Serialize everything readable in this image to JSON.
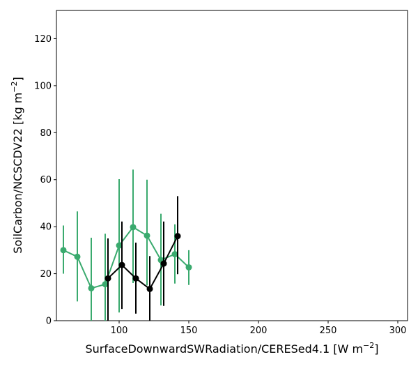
{
  "chart_data": {
    "type": "line",
    "xlabel": "SurfaceDownwardSWRadiation/CERESed4.1",
    "xlabel_unit_base": "W m",
    "xlabel_unit_exp": "−2",
    "ylabel": "SoilCarbon/NCSCDV22",
    "ylabel_unit_base": "kg m",
    "ylabel_unit_exp": "−2",
    "xlim": [
      55,
      307
    ],
    "ylim": [
      0,
      132
    ],
    "xticks": [
      100,
      150,
      200,
      250,
      300
    ],
    "yticks": [
      0,
      20,
      40,
      60,
      80,
      100,
      120
    ],
    "grid": false,
    "series": [
      {
        "color": "#3aaa6e",
        "points": [
          {
            "x": 60,
            "y": 30.0,
            "ylo": 20.0,
            "yhi": 40.5
          },
          {
            "x": 70,
            "y": 27.2,
            "ylo": 8.2,
            "yhi": 46.5
          },
          {
            "x": 80,
            "y": 13.8,
            "ylo": 0.0,
            "yhi": 35.3
          },
          {
            "x": 90,
            "y": 15.5,
            "ylo": 0.0,
            "yhi": 37.0
          },
          {
            "x": 100,
            "y": 32.0,
            "ylo": 3.5,
            "yhi": 60.2
          },
          {
            "x": 110,
            "y": 39.8,
            "ylo": 16.0,
            "yhi": 64.3
          },
          {
            "x": 120,
            "y": 36.2,
            "ylo": 15.0,
            "yhi": 60.0
          },
          {
            "x": 130,
            "y": 25.8,
            "ylo": 6.5,
            "yhi": 45.5
          },
          {
            "x": 140,
            "y": 28.3,
            "ylo": 15.8,
            "yhi": 41.0
          },
          {
            "x": 150,
            "y": 22.7,
            "ylo": 15.2,
            "yhi": 30.0
          }
        ]
      },
      {
        "color": "#000000",
        "points": [
          {
            "x": 92,
            "y": 18.0,
            "ylo": 0.0,
            "yhi": 35.0
          },
          {
            "x": 102,
            "y": 23.7,
            "ylo": 5.0,
            "yhi": 42.2
          },
          {
            "x": 112,
            "y": 18.0,
            "ylo": 3.0,
            "yhi": 33.2
          },
          {
            "x": 122,
            "y": 13.5,
            "ylo": 0.0,
            "yhi": 27.5
          },
          {
            "x": 132,
            "y": 24.3,
            "ylo": 6.3,
            "yhi": 42.2
          },
          {
            "x": 142,
            "y": 36.0,
            "ylo": 19.8,
            "yhi": 53.0
          }
        ]
      }
    ]
  }
}
